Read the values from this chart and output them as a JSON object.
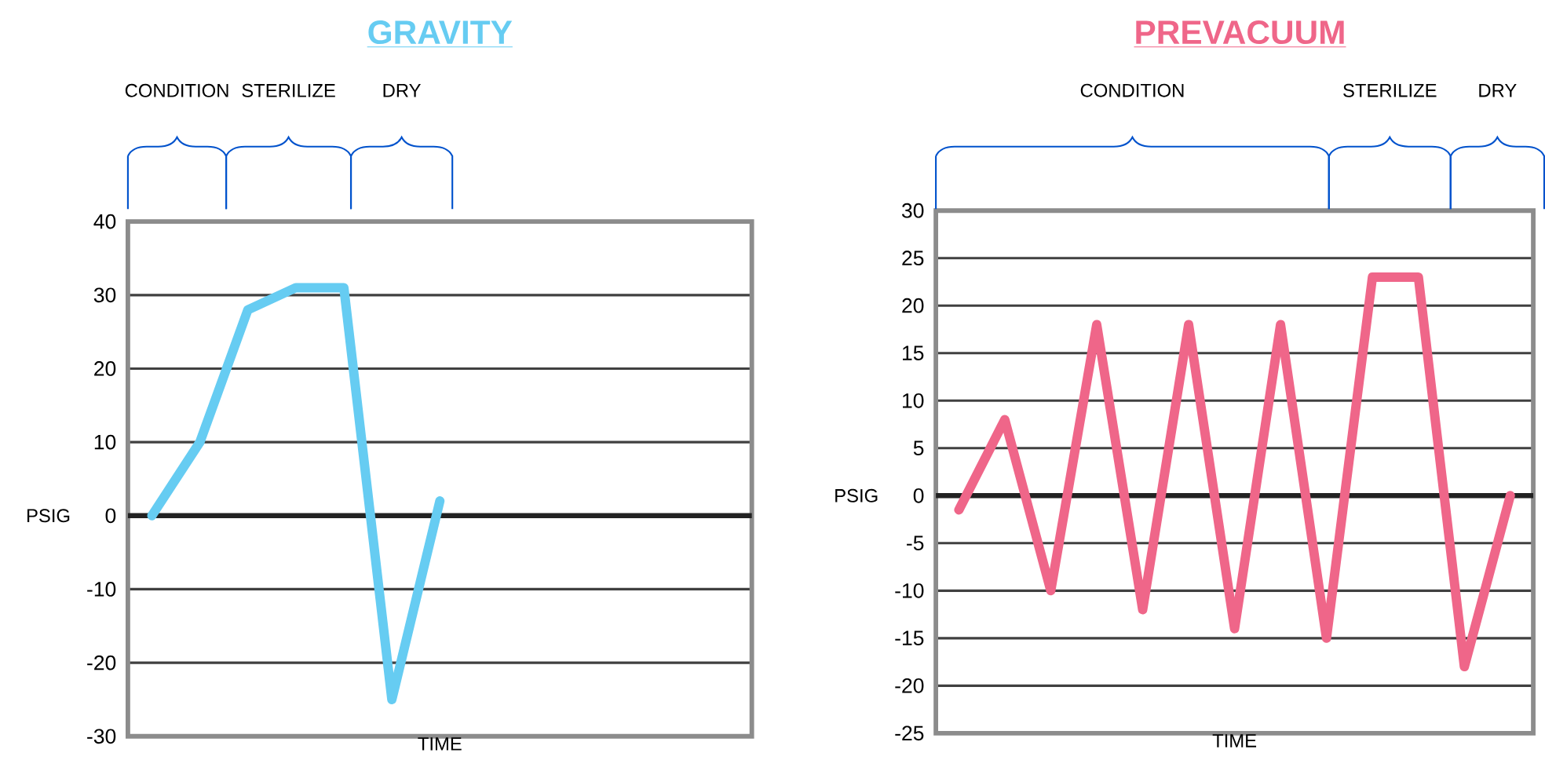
{
  "chart_data": [
    {
      "type": "line",
      "title": "GRAVITY",
      "xlabel": "TIME",
      "ylabel": "PSIG",
      "categories": [
        null,
        null,
        null,
        null,
        null,
        null,
        null,
        null,
        null,
        null,
        null,
        null,
        null
      ],
      "values": [
        0,
        10,
        28,
        31,
        31,
        -25,
        2,
        null,
        null,
        null,
        null,
        null,
        null
      ],
      "color": "#66ccf2",
      "ylim": [
        -30,
        40
      ],
      "yticks": [
        -30,
        -20,
        -10,
        0,
        10,
        20,
        30,
        40
      ],
      "grid": "y",
      "ref_lines": [
        {
          "axis": "y",
          "value": 0,
          "color": "#222222"
        }
      ],
      "annotations": [
        "CONDITION",
        "STERILIZE",
        "DRY"
      ]
    },
    {
      "type": "line",
      "title": "PREVACUUM",
      "xlabel": "TIME",
      "ylabel": "PSIG",
      "categories": [
        null,
        null,
        null,
        null,
        null,
        null,
        null,
        null,
        null,
        null,
        null,
        null,
        null
      ],
      "values": [
        -1.5,
        8,
        -10,
        18,
        -12,
        18,
        -14,
        18,
        -15,
        23,
        23,
        -18,
        0
      ],
      "color": "#ef6689",
      "ylim": [
        -25,
        30
      ],
      "yticks": [
        -25,
        -20,
        -15,
        -10,
        -5,
        0,
        5,
        10,
        15,
        20,
        25,
        30
      ],
      "grid": "y",
      "ref_lines": [
        {
          "axis": "y",
          "value": 0,
          "color": "#222222"
        }
      ],
      "annotations": [
        "CONDITION",
        "STERILIZE",
        "DRY"
      ]
    }
  ]
}
